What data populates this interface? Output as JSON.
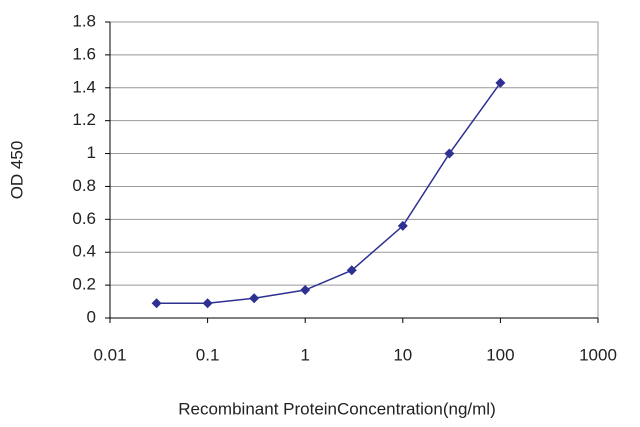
{
  "chart_data": {
    "type": "line",
    "x_label": "Recombinant ProteinConcentration(ng/ml)",
    "y_label": "OD 450",
    "xscale": "log",
    "xlim": [
      0.01,
      1000
    ],
    "xticks": [
      0.01,
      0.1,
      1,
      10,
      100,
      1000
    ],
    "ylim": [
      0,
      1.8
    ],
    "yticks": [
      0,
      0.2,
      0.4,
      0.6,
      0.8,
      1,
      1.2,
      1.4,
      1.6,
      1.8
    ],
    "grid": true,
    "series": [
      {
        "color": "#2e3192",
        "x": [
          0.03,
          0.1,
          0.3,
          1,
          3,
          10,
          30,
          100
        ],
        "values": [
          0.09,
          0.09,
          0.12,
          0.17,
          0.29,
          0.56,
          1.0,
          1.43
        ]
      }
    ]
  }
}
